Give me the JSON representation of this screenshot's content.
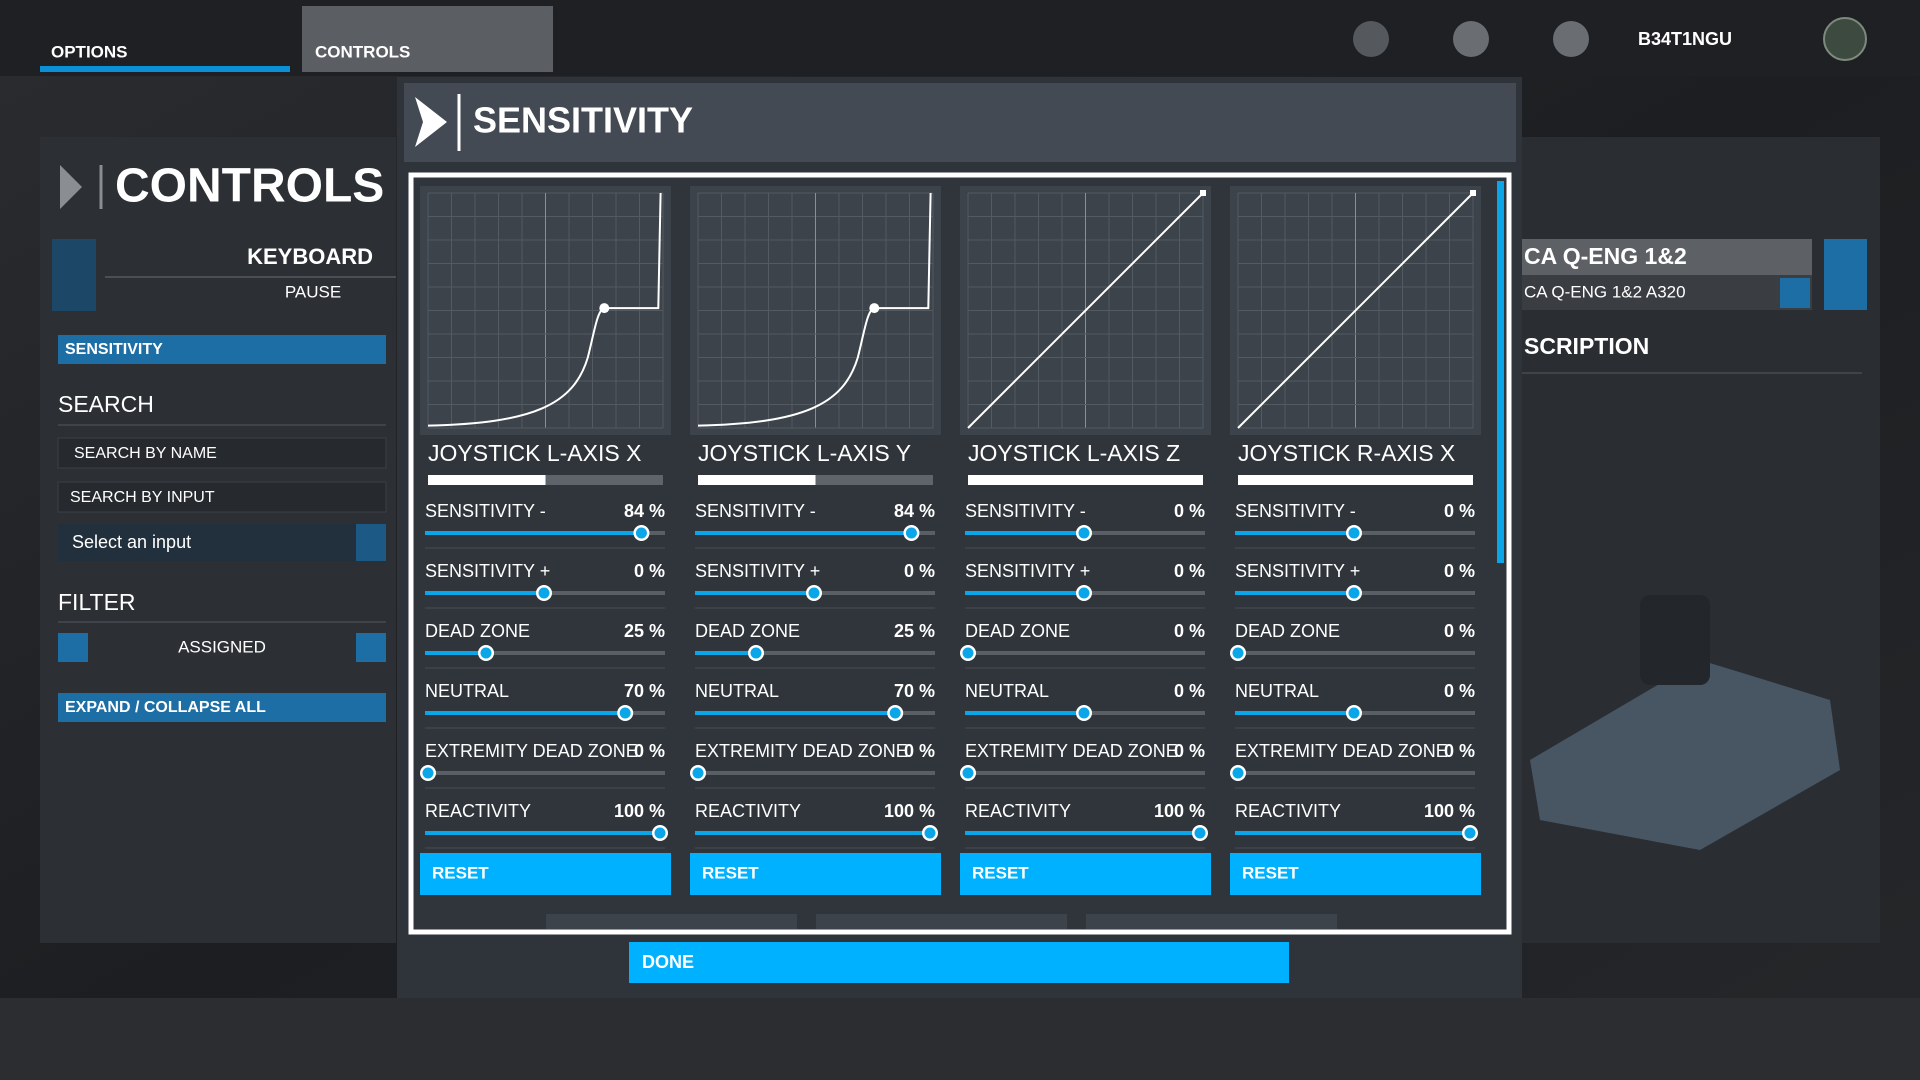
{
  "top_bar": {
    "tabs": [
      "OPTIONS",
      "CONTROLS"
    ],
    "username": "B34T1NGU"
  },
  "left_panel": {
    "title": "CONTROLS",
    "device": "KEYBOARD",
    "profile": "PAUSE",
    "category": "SENSITIVITY",
    "search_title": "SEARCH",
    "search_name_placeholder": "SEARCH BY NAME",
    "search_input_placeholder": "SEARCH BY INPUT",
    "select_input": "Select an input",
    "filter_title": "FILTER",
    "filter_value": "ASSIGNED",
    "expand_collapse": "EXPAND / COLLAPSE ALL"
  },
  "right_panel": {
    "device": "CA Q-ENG 1&2",
    "profile": "CA Q-ENG 1&2 A320",
    "section": "SCRIPTION"
  },
  "modal": {
    "title": "SENSITIVITY",
    "done": "DONE",
    "setting_ranges": [
      [
        -100,
        100
      ],
      [
        -100,
        100
      ],
      [
        0,
        100
      ],
      [
        -100,
        100
      ],
      [
        0,
        100
      ],
      [
        0,
        100
      ]
    ],
    "axes": [
      {
        "name": "JOYSTICK L-AXIS X",
        "reset": "RESET",
        "settings": [
          {
            "label": "SENSITIVITY -",
            "value": 84,
            "value_label": "84 %"
          },
          {
            "label": "SENSITIVITY +",
            "value": 0,
            "value_label": "0 %"
          },
          {
            "label": "DEAD ZONE",
            "value": 25,
            "value_label": "25 %"
          },
          {
            "label": "NEUTRAL",
            "value": 70,
            "value_label": "70 %"
          },
          {
            "label": "EXTREMITY DEAD ZONE",
            "value": 0,
            "value_label": "0 %"
          },
          {
            "label": "REACTIVITY",
            "value": 100,
            "value_label": "100 %"
          }
        ]
      },
      {
        "name": "JOYSTICK L-AXIS Y",
        "reset": "RESET",
        "settings": [
          {
            "label": "SENSITIVITY -",
            "value": 84,
            "value_label": "84 %"
          },
          {
            "label": "SENSITIVITY +",
            "value": 0,
            "value_label": "0 %"
          },
          {
            "label": "DEAD ZONE",
            "value": 25,
            "value_label": "25 %"
          },
          {
            "label": "NEUTRAL",
            "value": 70,
            "value_label": "70 %"
          },
          {
            "label": "EXTREMITY DEAD ZONE",
            "value": 0,
            "value_label": "0 %"
          },
          {
            "label": "REACTIVITY",
            "value": 100,
            "value_label": "100 %"
          }
        ]
      },
      {
        "name": "JOYSTICK L-AXIS Z",
        "reset": "RESET",
        "settings": [
          {
            "label": "SENSITIVITY -",
            "value": 0,
            "value_label": "0 %"
          },
          {
            "label": "SENSITIVITY +",
            "value": 0,
            "value_label": "0 %"
          },
          {
            "label": "DEAD ZONE",
            "value": 0,
            "value_label": "0 %"
          },
          {
            "label": "NEUTRAL",
            "value": 0,
            "value_label": "0 %"
          },
          {
            "label": "EXTREMITY DEAD ZONE",
            "value": 0,
            "value_label": "0 %"
          },
          {
            "label": "REACTIVITY",
            "value": 100,
            "value_label": "100 %"
          }
        ]
      },
      {
        "name": "JOYSTICK R-AXIS X",
        "reset": "RESET",
        "settings": [
          {
            "label": "SENSITIVITY -",
            "value": 0,
            "value_label": "0 %"
          },
          {
            "label": "SENSITIVITY +",
            "value": 0,
            "value_label": "0 %"
          },
          {
            "label": "DEAD ZONE",
            "value": 0,
            "value_label": "0 %"
          },
          {
            "label": "NEUTRAL",
            "value": 0,
            "value_label": "0 %"
          },
          {
            "label": "EXTREMITY DEAD ZONE",
            "value": 0,
            "value_label": "0 %"
          },
          {
            "label": "REACTIVITY",
            "value": 100,
            "value_label": "100 %"
          }
        ]
      }
    ]
  }
}
